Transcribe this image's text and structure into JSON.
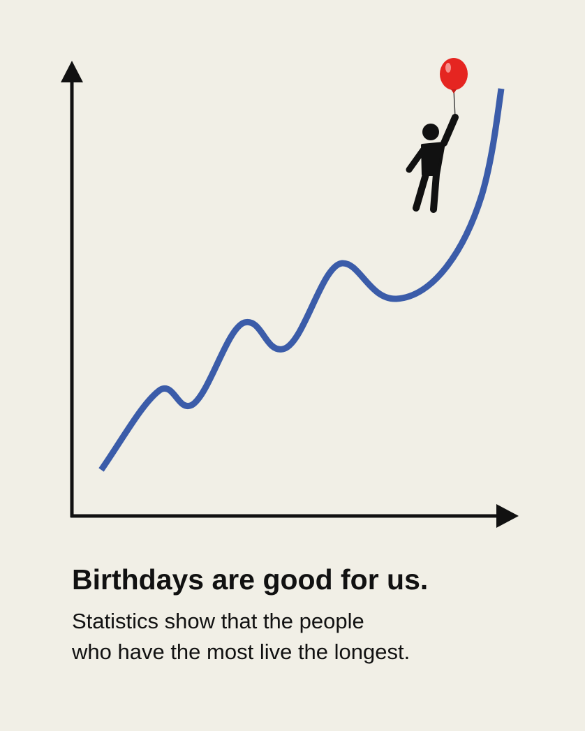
{
  "title": "Birthdays are good for us.",
  "subtitle": [
    "Statistics show that the people",
    "who have the most live the longest."
  ]
}
